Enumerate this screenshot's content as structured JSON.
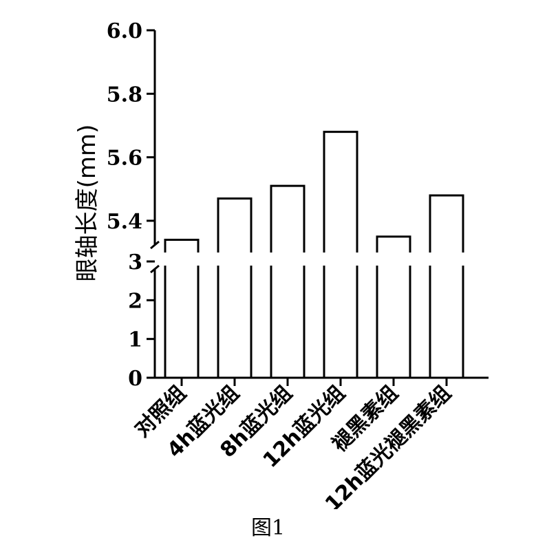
{
  "chart_data": {
    "type": "bar",
    "categories": [
      "对照组",
      "4h蓝光组",
      "8h蓝光组",
      "12h蓝光组",
      "褪黑素组",
      "12h蓝光褪黑素组"
    ],
    "values": [
      5.34,
      5.47,
      5.51,
      5.68,
      5.35,
      5.48
    ],
    "ylabel": "眼轴长度(mm)",
    "y_axis": {
      "broken": true,
      "lower_segment": {
        "range": [
          0,
          3
        ],
        "ticks": [
          "0",
          "1",
          "2",
          "3"
        ]
      },
      "upper_segment": {
        "range": [
          5.3,
          6.0
        ],
        "ticks": [
          "5.4",
          "5.6",
          "5.8",
          "6.0"
        ]
      }
    },
    "grid": false,
    "legend": "none",
    "bar_fill": "#ffffff",
    "bar_stroke": "#000000"
  },
  "caption": "图1"
}
